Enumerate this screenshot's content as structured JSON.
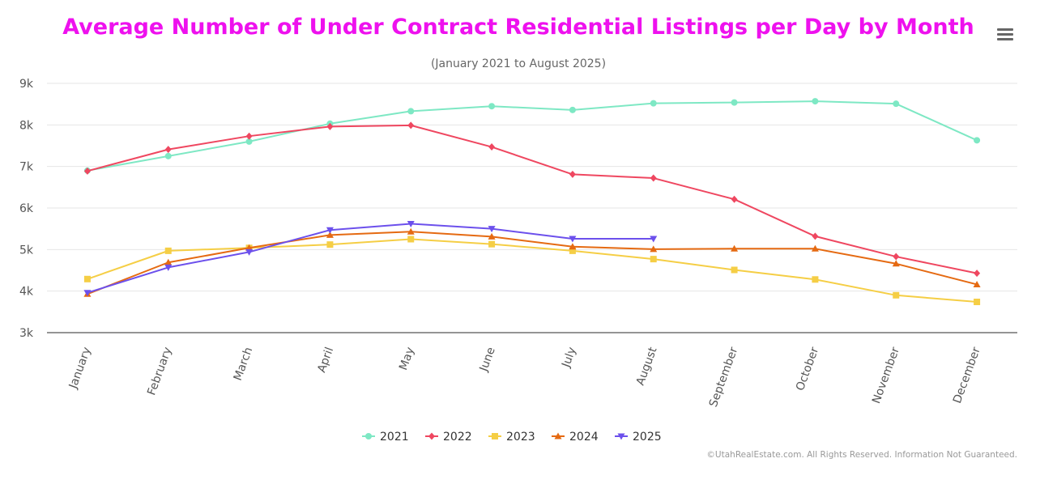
{
  "chart_data": {
    "type": "line",
    "title": "Average Number of Under Contract Residential Listings per Day by Month",
    "subtitle": "(January 2021 to August 2025)",
    "categories": [
      "January",
      "February",
      "March",
      "April",
      "May",
      "June",
      "July",
      "August",
      "September",
      "October",
      "November",
      "December"
    ],
    "y_ticks": [
      "3k",
      "4k",
      "5k",
      "6k",
      "7k",
      "8k",
      "9k"
    ],
    "ylim": [
      3000,
      9000
    ],
    "grid": true,
    "legend_position": "bottom-center",
    "series": [
      {
        "name": "2021",
        "color": "#7ee8c4",
        "marker": "circle",
        "values": [
          6900,
          7250,
          7600,
          8030,
          8330,
          8450,
          8360,
          8520,
          8540,
          8570,
          8510,
          7630
        ]
      },
      {
        "name": "2022",
        "color": "#ef4760",
        "marker": "diamond",
        "values": [
          6890,
          7410,
          7730,
          7960,
          7990,
          7470,
          6810,
          6720,
          6210,
          5320,
          4830,
          4430
        ]
      },
      {
        "name": "2023",
        "color": "#f5ce45",
        "marker": "square",
        "values": [
          4290,
          4970,
          5040,
          5120,
          5250,
          5130,
          4970,
          4770,
          4510,
          4280,
          3900,
          3740
        ]
      },
      {
        "name": "2024",
        "color": "#e56a12",
        "marker": "triangle",
        "values": [
          3930,
          4690,
          5040,
          5350,
          5430,
          5310,
          5070,
          5010,
          5020,
          5020,
          4660,
          4160
        ]
      },
      {
        "name": "2025",
        "color": "#6c50ec",
        "marker": "triangle-down",
        "values": [
          3960,
          4570,
          4940,
          5470,
          5620,
          5500,
          5260,
          5260,
          null,
          null,
          null,
          null
        ]
      }
    ]
  },
  "credits": "©UtahRealEstate.com. All Rights Reserved. Information Not Guaranteed.",
  "menu_icon": "hamburger-menu-icon"
}
